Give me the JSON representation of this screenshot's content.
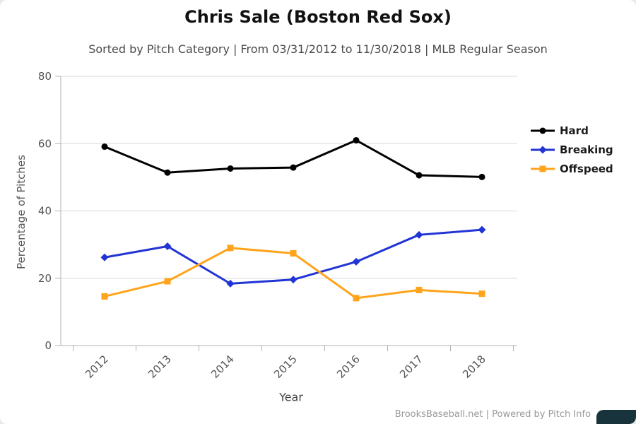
{
  "chart_data": {
    "type": "line",
    "title": "Chris Sale (Boston Red Sox)",
    "subtitle": "Sorted by Pitch Category | From 03/31/2012 to 11/30/2018 | MLB Regular Season",
    "xlabel": "Year",
    "ylabel": "Percentage of Pitches",
    "categories": [
      "2012",
      "2013",
      "2014",
      "2015",
      "2016",
      "2017",
      "2018"
    ],
    "yticks": [
      0,
      20,
      40,
      60,
      80
    ],
    "ylim": [
      0,
      80
    ],
    "grid": true,
    "legend_position": "right",
    "series": [
      {
        "name": "Hard",
        "color": "#000000",
        "marker": "circle",
        "values": [
          59.1,
          51.4,
          52.6,
          52.9,
          61.0,
          50.6,
          50.1
        ]
      },
      {
        "name": "Breaking",
        "color": "#2234d4",
        "marker": "diamond",
        "values": [
          26.2,
          29.5,
          18.4,
          19.6,
          24.9,
          32.9,
          34.4
        ]
      },
      {
        "name": "Offspeed",
        "color": "#ffa41c",
        "marker": "square",
        "values": [
          14.6,
          19.1,
          29.0,
          27.4,
          14.1,
          16.5,
          15.4
        ]
      }
    ]
  },
  "footer": {
    "credit": "BrooksBaseball.net | Powered by Pitch Info"
  }
}
